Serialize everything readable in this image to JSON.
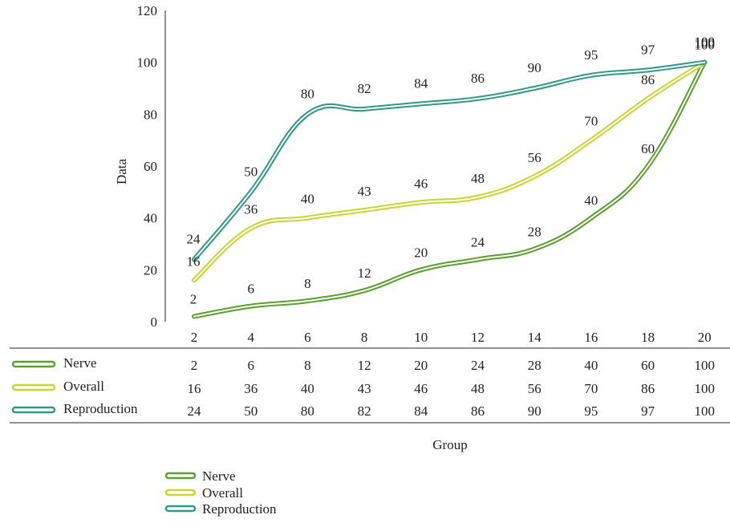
{
  "chart_data": {
    "type": "line",
    "ylabel": "Data",
    "xlabel": "Group",
    "ylim": [
      0,
      120
    ],
    "yticks": [
      0,
      20,
      40,
      60,
      80,
      100,
      120
    ],
    "categories": [
      "2",
      "4",
      "6",
      "8",
      "10",
      "12",
      "14",
      "16",
      "18",
      "20"
    ],
    "grid": false,
    "data_labels": true,
    "data_table": true,
    "legend_position": "bottom",
    "series": [
      {
        "name": "Nerve",
        "color": "#5aa02c",
        "values": [
          2,
          6,
          8,
          12,
          20,
          24,
          28,
          40,
          60,
          100
        ]
      },
      {
        "name": "Overall",
        "color": "#c8d62e",
        "values": [
          16,
          36,
          40,
          43,
          46,
          48,
          56,
          70,
          86,
          100
        ]
      },
      {
        "name": "Reproduction",
        "color": "#2e9a86",
        "values": [
          24,
          50,
          80,
          82,
          84,
          86,
          90,
          95,
          97,
          100
        ]
      }
    ]
  }
}
